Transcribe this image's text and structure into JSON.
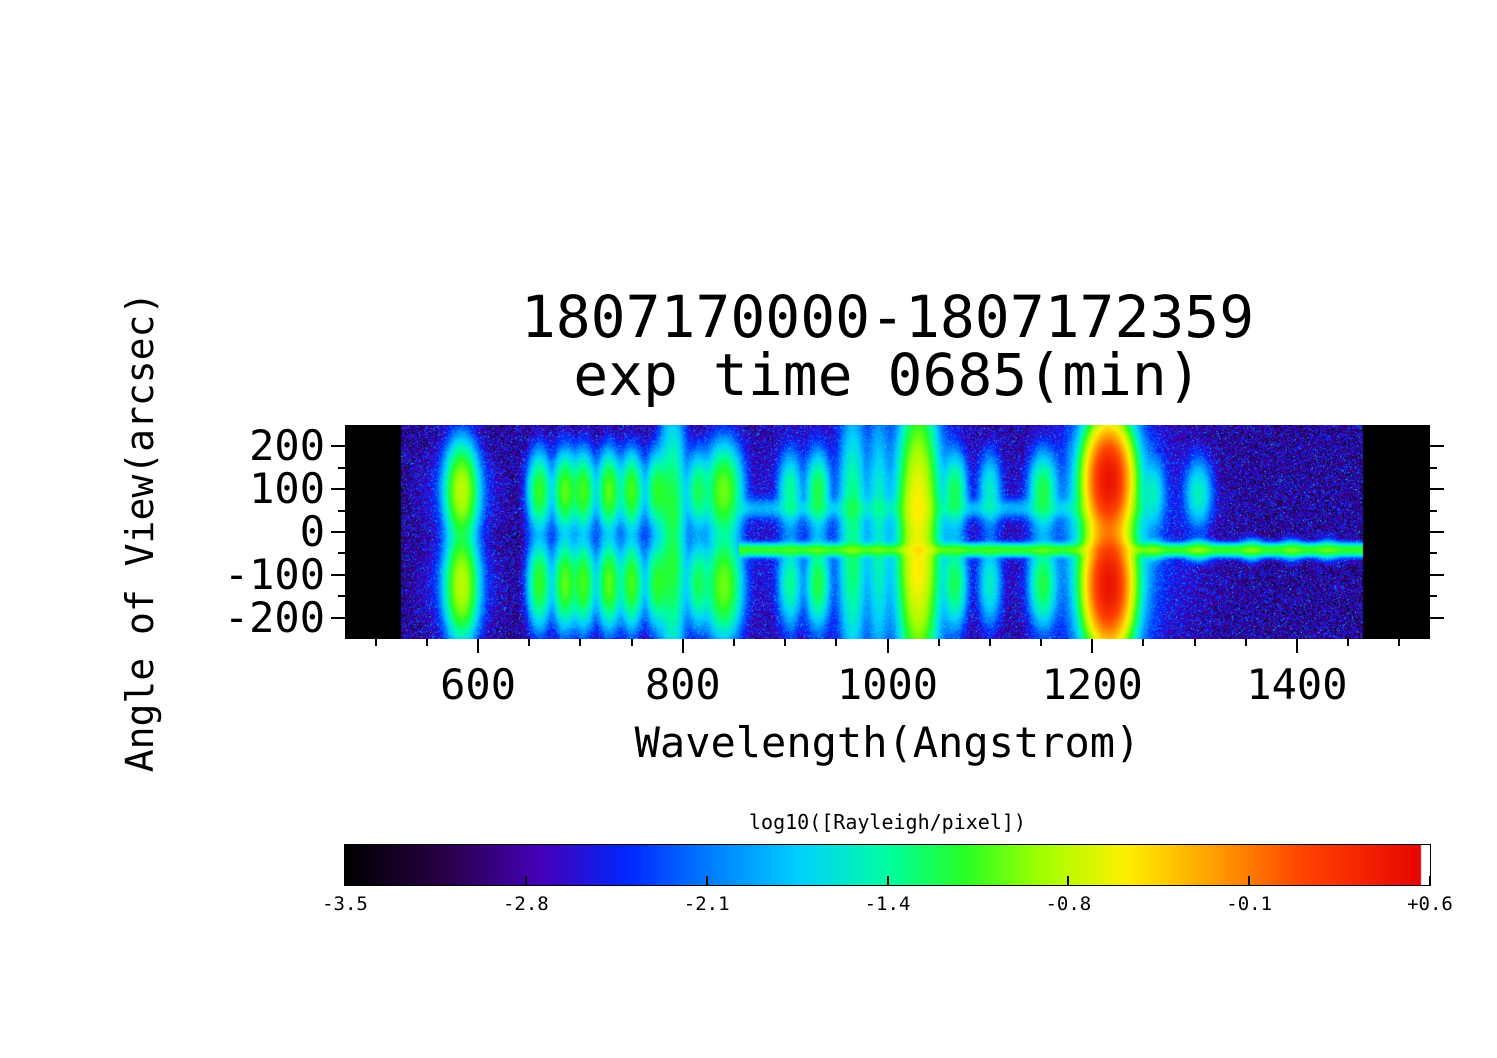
{
  "chart_data": {
    "type": "heatmap",
    "title_line1": "1807170000-1807172359",
    "title_line2": "exp time 0685(min)",
    "xlabel": "Wavelength(Angstrom)",
    "ylabel": "Angle of View(arcsec)",
    "value_label": "log10([Rayleigh/pixel])",
    "xlim": [
      470,
      1530
    ],
    "ylim": [
      -250,
      250
    ],
    "xticks": [
      600,
      800,
      1000,
      1200,
      1400
    ],
    "xtick_labels": [
      "600",
      "800",
      "1000",
      "1200",
      "1400"
    ],
    "yticks": [
      200,
      100,
      0,
      -100,
      -200
    ],
    "ytick_labels": [
      "200",
      "100",
      "0",
      "-100",
      "-200"
    ],
    "minor_tick_step": 50,
    "grid": false,
    "value_range": [
      -3.5,
      0.6
    ],
    "detector_range": [
      525,
      1465
    ],
    "background_log10": -2.82,
    "noise_sigma": 0.32,
    "colorbar": {
      "label": "log10([Rayleigh/pixel])",
      "min": -3.5,
      "max": 0.6,
      "orientation": "horizontal",
      "ticks": [
        -3.5,
        -2.8,
        -2.1,
        -1.4,
        -0.8,
        -0.1,
        0.6
      ],
      "tick_labels": [
        "-3.5",
        "-2.8",
        "-2.1",
        "-1.4",
        "-0.8",
        "-0.1",
        "+0.6"
      ]
    },
    "colormap": [
      [
        0.0,
        0,
        0,
        0
      ],
      [
        0.09,
        40,
        0,
        70
      ],
      [
        0.18,
        70,
        0,
        185
      ],
      [
        0.26,
        0,
        40,
        255
      ],
      [
        0.34,
        0,
        130,
        255
      ],
      [
        0.42,
        0,
        210,
        255
      ],
      [
        0.5,
        0,
        255,
        160
      ],
      [
        0.57,
        40,
        255,
        40
      ],
      [
        0.64,
        160,
        255,
        0
      ],
      [
        0.72,
        255,
        240,
        0
      ],
      [
        0.8,
        255,
        160,
        0
      ],
      [
        0.88,
        255,
        70,
        0
      ],
      [
        1.0,
        230,
        0,
        0
      ]
    ],
    "streaks": [
      {
        "y": -42,
        "sigma": 8,
        "peak_log10": -1.15,
        "wl_range": [
          855,
          1465
        ]
      },
      {
        "y": 55,
        "sigma": 13,
        "peak_log10": -2.0,
        "wl_range": [
          855,
          1250
        ]
      }
    ],
    "dark_band": {
      "wl_range": [
        1228,
        1252
      ],
      "factor": 0.6
    },
    "emission_lines": [
      {
        "wl": 584,
        "sigma": 8,
        "peak_log10": -0.8,
        "shape": "lobes-wide"
      },
      {
        "wl": 584,
        "sigma": 18,
        "peak_log10": -2.3,
        "shape": "lobes-wide"
      },
      {
        "wl": 660,
        "sigma": 6,
        "peak_log10": -1.15,
        "shape": "lobes"
      },
      {
        "wl": 685,
        "sigma": 6,
        "peak_log10": -1.05,
        "shape": "lobes"
      },
      {
        "wl": 703,
        "sigma": 6,
        "peak_log10": -1.1,
        "shape": "lobes"
      },
      {
        "wl": 728,
        "sigma": 6,
        "peak_log10": -1.05,
        "shape": "lobes"
      },
      {
        "wl": 750,
        "sigma": 6,
        "peak_log10": -1.1,
        "shape": "lobes"
      },
      {
        "wl": 775,
        "sigma": 6,
        "peak_log10": -1.2,
        "shape": "lobes"
      },
      {
        "wl": 790,
        "sigma": 7,
        "peak_log10": -1.15,
        "shape": "tall"
      },
      {
        "wl": 815,
        "sigma": 6,
        "peak_log10": -1.3,
        "shape": "lobes"
      },
      {
        "wl": 840,
        "sigma": 9,
        "peak_log10": -1.0,
        "shape": "lobes-wide"
      },
      {
        "wl": 905,
        "sigma": 6,
        "peak_log10": -1.45,
        "shape": "lobes"
      },
      {
        "wl": 932,
        "sigma": 6,
        "peak_log10": -1.25,
        "shape": "lobes"
      },
      {
        "wl": 960,
        "sigma": 60,
        "peak_log10": -2.6,
        "shape": "tall"
      },
      {
        "wl": 966,
        "sigma": 7,
        "peak_log10": -1.3,
        "shape": "tall"
      },
      {
        "wl": 991,
        "sigma": 6,
        "peak_log10": -1.55,
        "shape": "tall"
      },
      {
        "wl": 1030,
        "sigma": 9,
        "peak_log10": -0.5,
        "shape": "tall"
      },
      {
        "wl": 1030,
        "sigma": 18,
        "peak_log10": -1.6,
        "shape": "tall"
      },
      {
        "wl": 1066,
        "sigma": 6,
        "peak_log10": -1.3,
        "shape": "lobes"
      },
      {
        "wl": 1100,
        "sigma": 6,
        "peak_log10": -1.6,
        "shape": "lobes"
      },
      {
        "wl": 1152,
        "sigma": 7,
        "peak_log10": -1.25,
        "shape": "lobes"
      },
      {
        "wl": 1216,
        "sigma": 10,
        "peak_log10": 0.45,
        "shape": "tall-lobes"
      },
      {
        "wl": 1216,
        "sigma": 17,
        "peak_log10": -0.9,
        "shape": "tall"
      },
      {
        "wl": 1216,
        "sigma": 48,
        "peak_log10": -2.4,
        "shape": "tall"
      },
      {
        "wl": 1260,
        "sigma": 6,
        "peak_log10": -1.45,
        "shape": "mid-top"
      },
      {
        "wl": 1304,
        "sigma": 7,
        "peak_log10": -1.35,
        "shape": "mid-top"
      },
      {
        "wl": 1356,
        "sigma": 6,
        "peak_log10": -1.45,
        "shape": "mid"
      },
      {
        "wl": 1395,
        "sigma": 6,
        "peak_log10": -1.55,
        "shape": "mid"
      },
      {
        "wl": 1430,
        "sigma": 6,
        "peak_log10": -1.6,
        "shape": "mid"
      }
    ]
  }
}
